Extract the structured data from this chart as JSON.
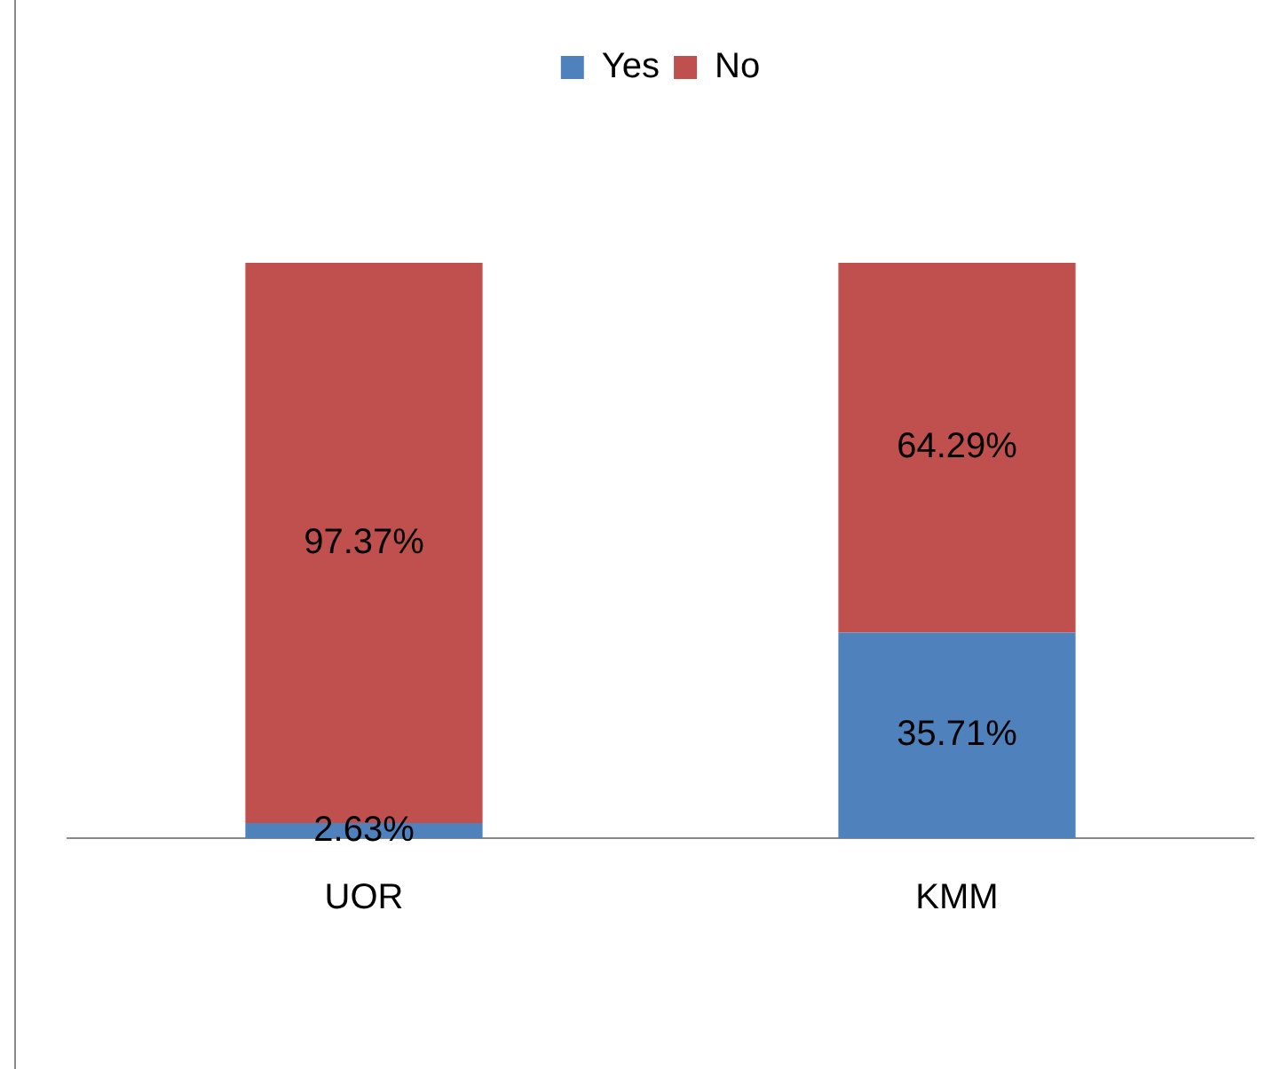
{
  "chart_data": {
    "type": "bar",
    "stacked": true,
    "categories": [
      "UOR",
      "KMM"
    ],
    "series": [
      {
        "name": "Yes",
        "color": "#4f81bd",
        "values": [
          2.63,
          35.71
        ],
        "value_labels": [
          "2.63%",
          "35.71%"
        ]
      },
      {
        "name": "No",
        "color": "#c0504d",
        "values": [
          97.37,
          64.29
        ],
        "value_labels": [
          "97.37%",
          "64.29%"
        ]
      }
    ],
    "legend": "top",
    "grid": false,
    "tick_labels": "x"
  }
}
